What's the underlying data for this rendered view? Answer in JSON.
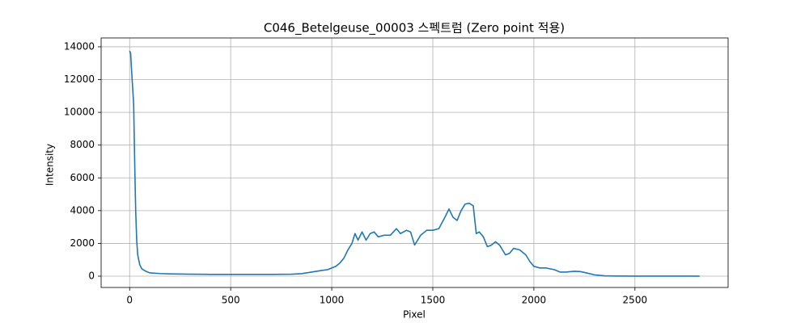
{
  "chart_data": {
    "type": "line",
    "title": "C046_Betelgeuse_00003 스펙트럼 (Zero point 적용)",
    "x_label": "Pixel",
    "y_label": "Intensity",
    "x": [
      0,
      5,
      10,
      20,
      25,
      30,
      35,
      40,
      50,
      60,
      80,
      100,
      150,
      200,
      300,
      400,
      500,
      600,
      700,
      800,
      850,
      900,
      950,
      980,
      1000,
      1020,
      1040,
      1060,
      1080,
      1100,
      1115,
      1130,
      1150,
      1170,
      1190,
      1210,
      1230,
      1260,
      1290,
      1320,
      1340,
      1370,
      1390,
      1410,
      1440,
      1470,
      1500,
      1530,
      1560,
      1580,
      1600,
      1620,
      1640,
      1660,
      1680,
      1700,
      1715,
      1730,
      1750,
      1770,
      1790,
      1810,
      1830,
      1860,
      1880,
      1900,
      1930,
      1960,
      1980,
      2000,
      2030,
      2060,
      2100,
      2130,
      2160,
      2200,
      2230,
      2260,
      2300,
      2350,
      2400,
      2500,
      2600,
      2700,
      2820
    ],
    "values": [
      13750,
      13600,
      12500,
      10500,
      7000,
      4000,
      2200,
      1300,
      700,
      450,
      300,
      200,
      160,
      140,
      120,
      110,
      110,
      110,
      110,
      120,
      150,
      250,
      350,
      400,
      500,
      600,
      800,
      1100,
      1600,
      2000,
      2600,
      2200,
      2700,
      2200,
      2600,
      2700,
      2400,
      2500,
      2500,
      2900,
      2600,
      2800,
      2700,
      1900,
      2500,
      2800,
      2800,
      2900,
      3600,
      4100,
      3600,
      3400,
      4000,
      4400,
      4450,
      4300,
      2600,
      2700,
      2400,
      1800,
      1900,
      2100,
      1900,
      1300,
      1400,
      1700,
      1600,
      1300,
      900,
      600,
      500,
      500,
      400,
      250,
      250,
      300,
      280,
      200,
      80,
      20,
      10,
      5,
      5,
      5,
      5
    ],
    "color": "#1f77b4",
    "xlim": [
      -141,
      2961
    ],
    "ylim": [
      -690,
      14540
    ],
    "xticks": [
      0,
      500,
      1000,
      1500,
      2000,
      2500
    ],
    "yticks": [
      0,
      2000,
      4000,
      6000,
      8000,
      10000,
      12000,
      14000
    ],
    "grid": true
  }
}
